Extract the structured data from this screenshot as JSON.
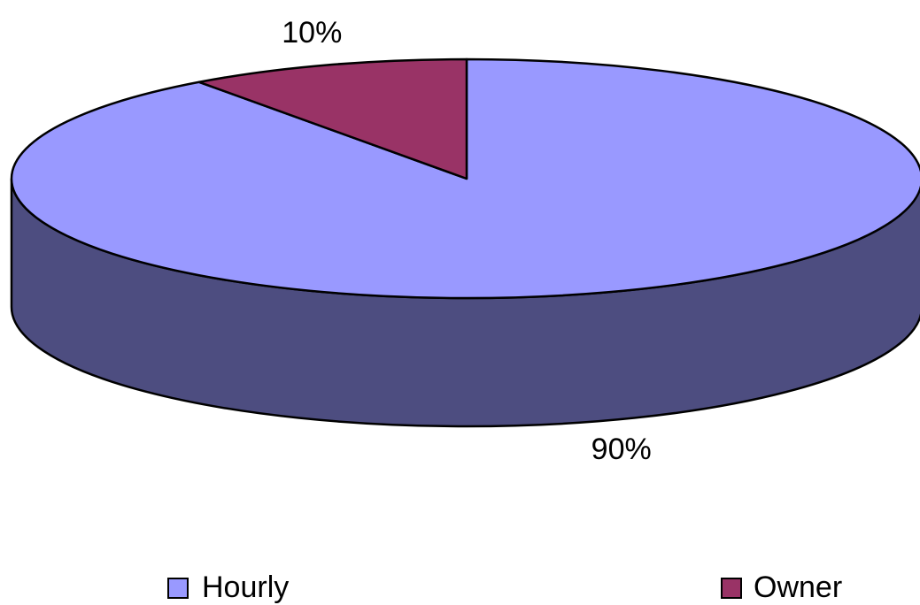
{
  "chart_data": {
    "type": "pie",
    "categories": [
      "Hourly",
      "Owner"
    ],
    "values": [
      90,
      10
    ],
    "value_labels": [
      "90%",
      "10%"
    ],
    "colors": [
      "#9999ff",
      "#993366"
    ],
    "side_color": "#4d4d80"
  }
}
